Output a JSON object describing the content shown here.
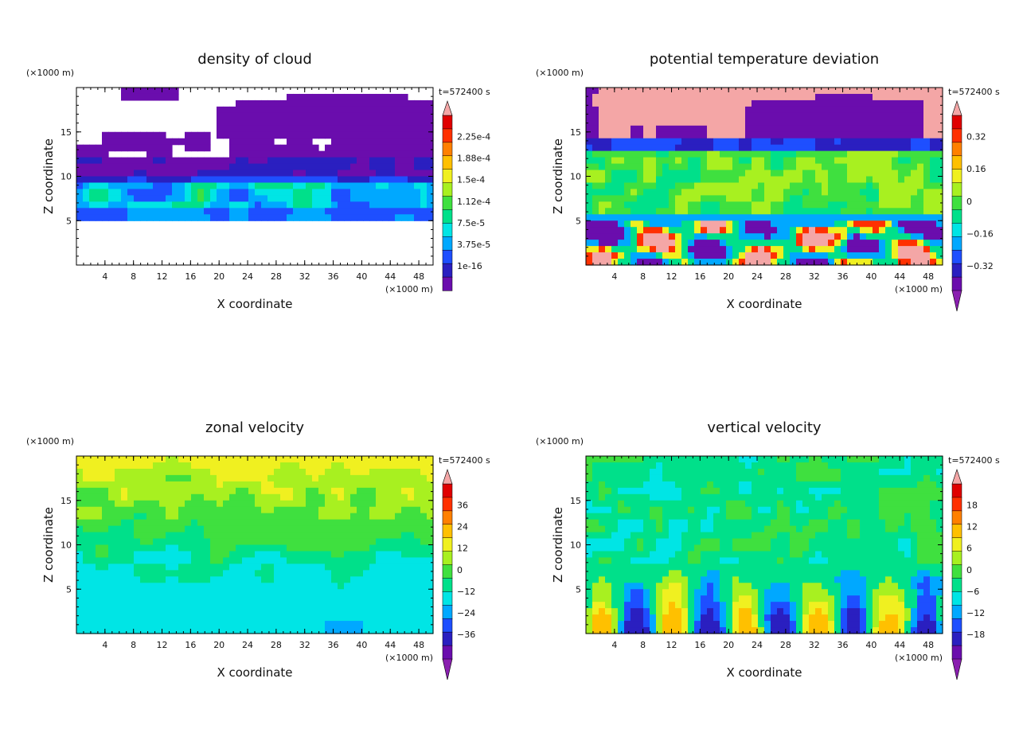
{
  "chart_data": [
    {
      "type": "heatmap",
      "title": "density of cloud",
      "xlabel": "X coordinate",
      "ylabel": "Z coordinate",
      "x_unit": "(×1000 m)",
      "y_unit": "(×1000 m)",
      "time_label": "t=572400 s",
      "xlim": [
        0,
        50
      ],
      "ylim": [
        0,
        20
      ],
      "x_ticks": [
        "4",
        "8",
        "12",
        "16",
        "20",
        "24",
        "28",
        "32",
        "36",
        "40",
        "44",
        "48"
      ],
      "y_ticks": [
        "5",
        "10",
        "15"
      ],
      "colorbar_ticks": [
        "2.25e-4",
        "1.88e-4",
        "1.5e-4",
        "1.12e-4",
        "7.5e-5",
        "3.75e-5",
        "1e-16"
      ],
      "colorbar_extend": "max"
    },
    {
      "type": "heatmap",
      "title": "potential temperature deviation",
      "xlabel": "X coordinate",
      "ylabel": "Z coordinate",
      "x_unit": "(×1000 m)",
      "y_unit": "(×1000 m)",
      "time_label": "t=572400 s",
      "xlim": [
        0,
        50
      ],
      "ylim": [
        0,
        20
      ],
      "x_ticks": [
        "4",
        "8",
        "12",
        "16",
        "20",
        "24",
        "28",
        "32",
        "36",
        "40",
        "44",
        "48"
      ],
      "y_ticks": [
        "5",
        "10",
        "15"
      ],
      "colorbar_ticks": [
        "0.32",
        "0.16",
        "0",
        "−0.16",
        "−0.32"
      ],
      "colorbar_extend": "both"
    },
    {
      "type": "heatmap",
      "title": "zonal velocity",
      "xlabel": "X coordinate",
      "ylabel": "Z coordinate",
      "x_unit": "(×1000 m)",
      "y_unit": "(×1000 m)",
      "time_label": "t=572400 s",
      "xlim": [
        0,
        50
      ],
      "ylim": [
        0,
        20
      ],
      "x_ticks": [
        "4",
        "8",
        "12",
        "16",
        "20",
        "24",
        "28",
        "32",
        "36",
        "40",
        "44",
        "48"
      ],
      "y_ticks": [
        "5",
        "10",
        "15"
      ],
      "colorbar_ticks": [
        "36",
        "24",
        "12",
        "0",
        "−12",
        "−24",
        "−36"
      ],
      "colorbar_extend": "both"
    },
    {
      "type": "heatmap",
      "title": "vertical velocity",
      "xlabel": "X coordinate",
      "ylabel": "Z coordinate",
      "x_unit": "(×1000 m)",
      "y_unit": "(×1000 m)",
      "time_label": "t=572400 s",
      "xlim": [
        0,
        50
      ],
      "ylim": [
        0,
        20
      ],
      "x_ticks": [
        "4",
        "8",
        "12",
        "16",
        "20",
        "24",
        "28",
        "32",
        "36",
        "40",
        "44",
        "48"
      ],
      "y_ticks": [
        "5",
        "10",
        "15"
      ],
      "colorbar_ticks": [
        "18",
        "12",
        "6",
        "0",
        "−6",
        "−12",
        "−18"
      ],
      "colorbar_extend": "both"
    }
  ]
}
